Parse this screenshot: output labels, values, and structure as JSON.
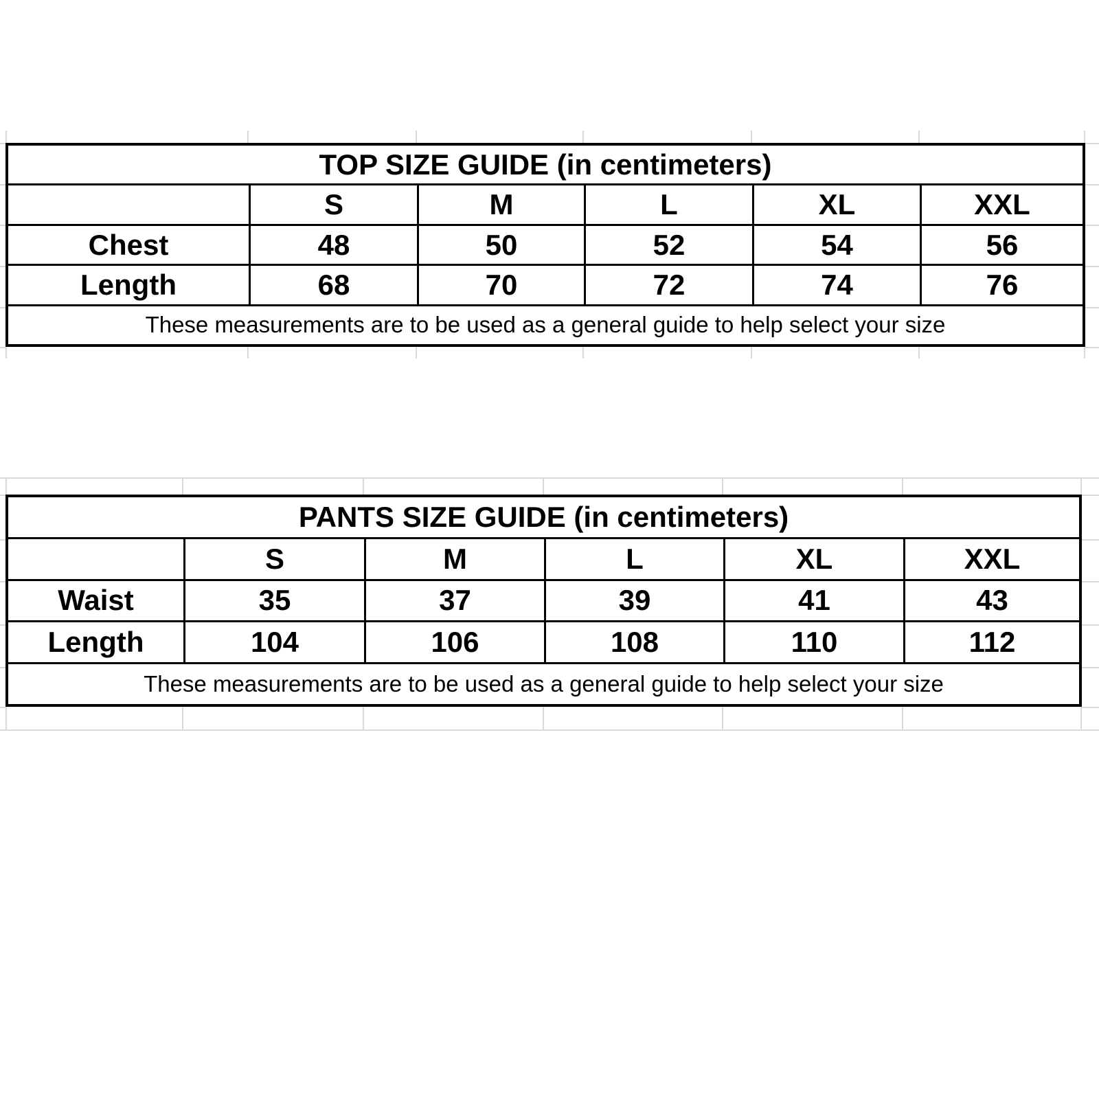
{
  "page": {
    "background_color": "#ffffff",
    "gridline_color": "#d9d9d9",
    "table_border_color": "#000000",
    "text_color": "#000000"
  },
  "tables": [
    {
      "title": "TOP SIZE GUIDE (in centimeters)",
      "columns": [
        "S",
        "M",
        "L",
        "XL",
        "XXL"
      ],
      "rows": [
        {
          "label": "Chest",
          "values": [
            "48",
            "50",
            "52",
            "54",
            "56"
          ]
        },
        {
          "label": "Length",
          "values": [
            "68",
            "70",
            "72",
            "74",
            "76"
          ]
        }
      ],
      "footnote": "These measurements are to be used as a general guide to help select your size"
    },
    {
      "title": "PANTS SIZE GUIDE (in centimeters)",
      "columns": [
        "S",
        "M",
        "L",
        "XL",
        "XXL"
      ],
      "rows": [
        {
          "label": "Waist",
          "values": [
            "35",
            "37",
            "39",
            "41",
            "43"
          ]
        },
        {
          "label": "Length",
          "values": [
            "104",
            "106",
            "108",
            "110",
            "112"
          ]
        }
      ],
      "footnote": "These measurements are to be used as a general guide to help select your size"
    }
  ],
  "chart_data": [
    {
      "type": "table",
      "title": "TOP SIZE GUIDE (in centimeters)",
      "columns": [
        "",
        "S",
        "M",
        "L",
        "XL",
        "XXL"
      ],
      "rows": [
        [
          "Chest",
          48,
          50,
          52,
          54,
          56
        ],
        [
          "Length",
          68,
          70,
          72,
          74,
          76
        ]
      ],
      "note": "These measurements are to be used as a general guide to help select your size",
      "units": "centimeters"
    },
    {
      "type": "table",
      "title": "PANTS SIZE GUIDE (in centimeters)",
      "columns": [
        "",
        "S",
        "M",
        "L",
        "XL",
        "XXL"
      ],
      "rows": [
        [
          "Waist",
          35,
          37,
          39,
          41,
          43
        ],
        [
          "Length",
          104,
          106,
          108,
          110,
          112
        ]
      ],
      "note": "These measurements are to be used as a general guide to help select your size",
      "units": "centimeters"
    }
  ]
}
